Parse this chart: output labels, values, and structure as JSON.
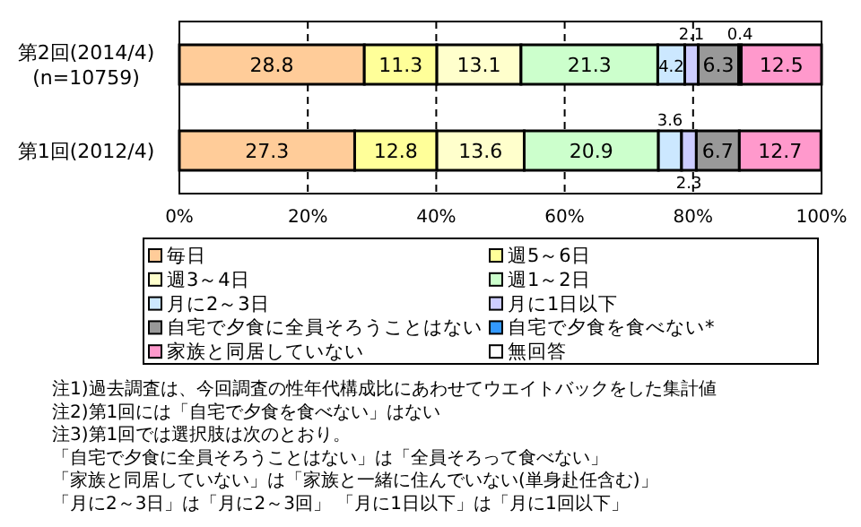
{
  "chart_data": {
    "type": "bar",
    "orientation": "horizontal",
    "stacked": true,
    "data_labels": true,
    "grid": "x",
    "legend": "bottom",
    "categories": [
      "第2回(2014/4)\n(n=10759)",
      "第1回(2012/4)"
    ],
    "xlim": [
      0,
      100
    ],
    "xticks": [
      {
        "value": 0,
        "label": "0%"
      },
      {
        "value": 20,
        "label": "20%"
      },
      {
        "value": 40,
        "label": "40%"
      },
      {
        "value": 60,
        "label": "60%"
      },
      {
        "value": 80,
        "label": "80%"
      },
      {
        "value": 100,
        "label": "100%"
      }
    ],
    "series": [
      {
        "name": "毎日",
        "color": "#ffcc99",
        "values": [
          28.8,
          27.3
        ]
      },
      {
        "name": "週5～6日",
        "color": "#ffff99",
        "values": [
          11.3,
          12.8
        ]
      },
      {
        "name": "週3～4日",
        "color": "#ffffcc",
        "values": [
          13.1,
          13.6
        ]
      },
      {
        "name": "週1～2日",
        "color": "#ccffcc",
        "values": [
          21.3,
          20.9
        ]
      },
      {
        "name": "月に2～3日",
        "color": "#cce8ff",
        "values": [
          4.2,
          3.6
        ]
      },
      {
        "name": "月に1日以下",
        "color": "#ccccff",
        "values": [
          2.1,
          2.3
        ]
      },
      {
        "name": "自宅で夕食に全員そろうことはない",
        "color": "#999999",
        "values": [
          6.3,
          6.7
        ]
      },
      {
        "name": "自宅で夕食を食べない*",
        "color": "#3399ff",
        "values": [
          0.4,
          null
        ]
      },
      {
        "name": "家族と同居していない",
        "color": "#ff99cc",
        "values": [
          12.5,
          12.7
        ]
      },
      {
        "name": "無回答",
        "color": "#ffffff",
        "values": [
          null,
          null
        ]
      }
    ],
    "annotations": [
      "注1)過去調査は、今回調査の性年代構成比にあわせてウエイトバックをした集計値",
      "注2)第1回には「自宅で夕食を食べない」はない",
      "注3)第1回では選択肢は次のとおり。",
      "「自宅で夕食に全員そろうことはない」は「全員そろって食べない」",
      "「家族と同居していない」は「家族と一緒に住んでいない(単身赴任含む)」",
      "「月に2～3日」は「月に2～3回」 「月に1日以下」は「月に1回以下」"
    ]
  }
}
